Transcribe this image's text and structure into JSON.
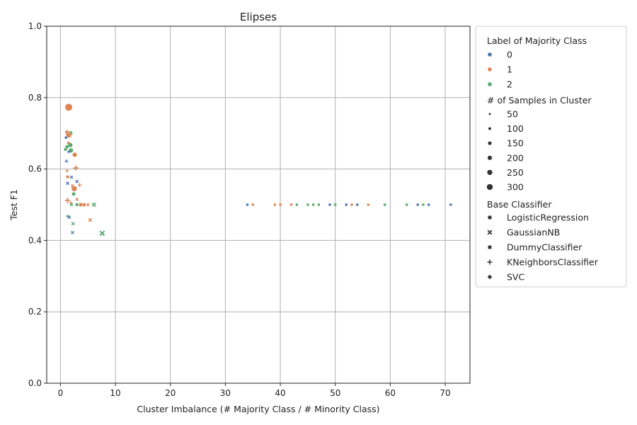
{
  "chart_data": {
    "type": "scatter",
    "title": "Elipses",
    "xlabel": "Cluster Imbalance (# Majority Class / # Minority Class)",
    "ylabel": "Test F1",
    "xlim": [
      -2.5,
      74.5
    ],
    "ylim": [
      0.0,
      1.0
    ],
    "xticks": [
      0,
      10,
      20,
      30,
      40,
      50,
      60,
      70
    ],
    "yticks": [
      0.0,
      0.2,
      0.4,
      0.6,
      0.8,
      1.0
    ],
    "xtick_labels": [
      "0",
      "10",
      "20",
      "30",
      "40",
      "50",
      "60",
      "70"
    ],
    "ytick_labels": [
      "0.0",
      "0.2",
      "0.4",
      "0.6",
      "0.8",
      "1.0"
    ],
    "grid": true,
    "legend_placement": "outside-right",
    "colors": {
      "0": "#4c72b0",
      "1": "#dd8452",
      "2": "#55a868"
    },
    "legend": {
      "hue_title": "Label of Majority Class",
      "hue_items": [
        {
          "label": "0",
          "color": "#4c72b0"
        },
        {
          "label": "1",
          "color": "#dd8452"
        },
        {
          "label": "2",
          "color": "#55a868"
        }
      ],
      "size_title": "# of Samples in Cluster",
      "size_items": [
        {
          "label": "50",
          "value": 50
        },
        {
          "label": "100",
          "value": 100
        },
        {
          "label": "150",
          "value": 150
        },
        {
          "label": "200",
          "value": 200
        },
        {
          "label": "250",
          "value": 250
        },
        {
          "label": "300",
          "value": 300
        }
      ],
      "style_title": "Base Classifier",
      "style_items": [
        {
          "label": "LogisticRegression",
          "marker": "circle"
        },
        {
          "label": "GaussianNB",
          "marker": "x"
        },
        {
          "label": "DummyClassifier",
          "marker": "square"
        },
        {
          "label": "KNeighborsClassifier",
          "marker": "plus"
        },
        {
          "label": "SVC",
          "marker": "diamond"
        }
      ]
    },
    "points": [
      {
        "x": 1.5,
        "y": 0.773,
        "label": "1",
        "marker": "circle",
        "size": 300
      },
      {
        "x": 1.2,
        "y": 0.703,
        "label": "1",
        "marker": "circle",
        "size": 120
      },
      {
        "x": 1.8,
        "y": 0.7,
        "label": "2",
        "marker": "circle",
        "size": 150
      },
      {
        "x": 1.5,
        "y": 0.695,
        "label": "1",
        "marker": "circle",
        "size": 200
      },
      {
        "x": 1.0,
        "y": 0.688,
        "label": "0",
        "marker": "circle",
        "size": 60
      },
      {
        "x": 1.5,
        "y": 0.672,
        "label": "1",
        "marker": "circle",
        "size": 100
      },
      {
        "x": 1.8,
        "y": 0.667,
        "label": "2",
        "marker": "circle",
        "size": 150
      },
      {
        "x": 1.2,
        "y": 0.662,
        "label": "2",
        "marker": "circle",
        "size": 100
      },
      {
        "x": 0.9,
        "y": 0.655,
        "label": "2",
        "marker": "circle",
        "size": 80
      },
      {
        "x": 1.9,
        "y": 0.652,
        "label": "2",
        "marker": "circle",
        "size": 150
      },
      {
        "x": 1.5,
        "y": 0.648,
        "label": "0",
        "marker": "plus",
        "size": 60
      },
      {
        "x": 2.6,
        "y": 0.64,
        "label": "1",
        "marker": "circle",
        "size": 150
      },
      {
        "x": 1.1,
        "y": 0.622,
        "label": "0",
        "marker": "plus",
        "size": 60
      },
      {
        "x": 2.8,
        "y": 0.603,
        "label": "1",
        "marker": "plus",
        "size": 150
      },
      {
        "x": 1.2,
        "y": 0.595,
        "label": "1",
        "marker": "plus",
        "size": 50
      },
      {
        "x": 1.3,
        "y": 0.578,
        "label": "1",
        "marker": "circle",
        "size": 80
      },
      {
        "x": 2.0,
        "y": 0.577,
        "label": "0",
        "marker": "x",
        "size": 60
      },
      {
        "x": 3.0,
        "y": 0.565,
        "label": "0",
        "marker": "x",
        "size": 60
      },
      {
        "x": 1.3,
        "y": 0.56,
        "label": "0",
        "marker": "x",
        "size": 60
      },
      {
        "x": 3.5,
        "y": 0.555,
        "label": "1",
        "marker": "plus",
        "size": 80
      },
      {
        "x": 2.2,
        "y": 0.553,
        "label": "1",
        "marker": "x",
        "size": 50
      },
      {
        "x": 2.5,
        "y": 0.545,
        "label": "1",
        "marker": "circle",
        "size": 200
      },
      {
        "x": 2.4,
        "y": 0.53,
        "label": "2",
        "marker": "circle",
        "size": 100
      },
      {
        "x": 3.0,
        "y": 0.515,
        "label": "1",
        "marker": "x",
        "size": 50
      },
      {
        "x": 1.3,
        "y": 0.512,
        "label": "1",
        "marker": "plus",
        "size": 150
      },
      {
        "x": 1.9,
        "y": 0.505,
        "label": "1",
        "marker": "plus",
        "size": 60
      },
      {
        "x": 2.0,
        "y": 0.5,
        "label": "2",
        "marker": "x",
        "size": 50
      },
      {
        "x": 3.0,
        "y": 0.5,
        "label": "2",
        "marker": "square",
        "size": 80
      },
      {
        "x": 3.7,
        "y": 0.5,
        "label": "1",
        "marker": "circle",
        "size": 120
      },
      {
        "x": 4.3,
        "y": 0.5,
        "label": "1",
        "marker": "circle",
        "size": 100
      },
      {
        "x": 5.0,
        "y": 0.5,
        "label": "1",
        "marker": "x",
        "size": 50
      },
      {
        "x": 6.1,
        "y": 0.5,
        "label": "2",
        "marker": "x",
        "size": 100
      },
      {
        "x": 1.3,
        "y": 0.468,
        "label": "2",
        "marker": "plus",
        "size": 50
      },
      {
        "x": 1.6,
        "y": 0.465,
        "label": "0",
        "marker": "x",
        "size": 60
      },
      {
        "x": 5.4,
        "y": 0.457,
        "label": "1",
        "marker": "x",
        "size": 80
      },
      {
        "x": 2.3,
        "y": 0.447,
        "label": "2",
        "marker": "x",
        "size": 60
      },
      {
        "x": 7.6,
        "y": 0.42,
        "label": "2",
        "marker": "x",
        "size": 150
      },
      {
        "x": 2.2,
        "y": 0.422,
        "label": "0",
        "marker": "x",
        "size": 50
      },
      {
        "x": 34,
        "y": 0.5,
        "label": "0",
        "marker": "square",
        "size": 50
      },
      {
        "x": 35,
        "y": 0.5,
        "label": "1",
        "marker": "square",
        "size": 50
      },
      {
        "x": 39,
        "y": 0.5,
        "label": "1",
        "marker": "square",
        "size": 50
      },
      {
        "x": 40,
        "y": 0.5,
        "label": "1",
        "marker": "square",
        "size": 50
      },
      {
        "x": 42,
        "y": 0.5,
        "label": "1",
        "marker": "square",
        "size": 50
      },
      {
        "x": 43,
        "y": 0.5,
        "label": "2",
        "marker": "square",
        "size": 50
      },
      {
        "x": 45,
        "y": 0.5,
        "label": "2",
        "marker": "square",
        "size": 50
      },
      {
        "x": 46,
        "y": 0.5,
        "label": "2",
        "marker": "square",
        "size": 50
      },
      {
        "x": 47,
        "y": 0.5,
        "label": "2",
        "marker": "square",
        "size": 50
      },
      {
        "x": 49,
        "y": 0.5,
        "label": "0",
        "marker": "square",
        "size": 50
      },
      {
        "x": 50,
        "y": 0.5,
        "label": "2",
        "marker": "square",
        "size": 50
      },
      {
        "x": 52,
        "y": 0.5,
        "label": "0",
        "marker": "square",
        "size": 50
      },
      {
        "x": 53,
        "y": 0.5,
        "label": "1",
        "marker": "square",
        "size": 50
      },
      {
        "x": 54,
        "y": 0.5,
        "label": "0",
        "marker": "square",
        "size": 50
      },
      {
        "x": 56,
        "y": 0.5,
        "label": "1",
        "marker": "square",
        "size": 50
      },
      {
        "x": 59,
        "y": 0.5,
        "label": "2",
        "marker": "square",
        "size": 50
      },
      {
        "x": 63,
        "y": 0.5,
        "label": "2",
        "marker": "square",
        "size": 50
      },
      {
        "x": 65,
        "y": 0.5,
        "label": "0",
        "marker": "square",
        "size": 50
      },
      {
        "x": 66,
        "y": 0.5,
        "label": "2",
        "marker": "square",
        "size": 50
      },
      {
        "x": 67,
        "y": 0.5,
        "label": "0",
        "marker": "square",
        "size": 50
      },
      {
        "x": 71,
        "y": 0.5,
        "label": "0",
        "marker": "square",
        "size": 50
      }
    ]
  }
}
